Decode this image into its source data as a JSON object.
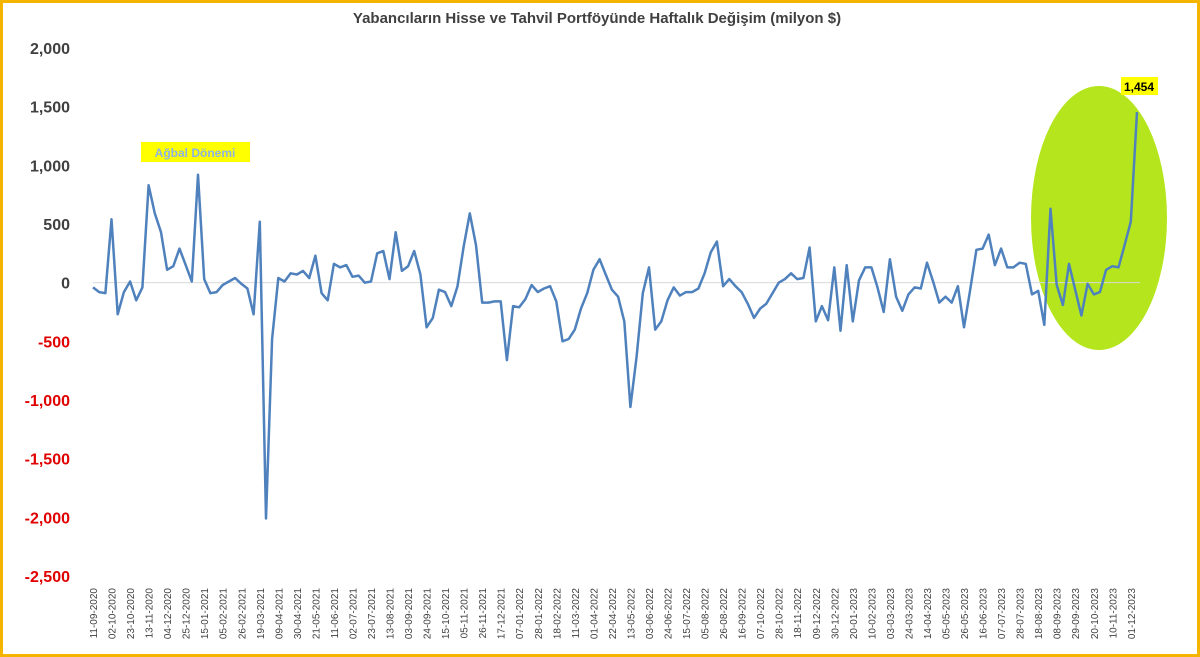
{
  "chart_data": {
    "type": "line",
    "title": "Yabancıların Hisse ve Tahvil Portföyünde Haftalık Değişim (milyon $)",
    "xlabel": "",
    "ylabel": "",
    "ylim": [
      -2500,
      2000
    ],
    "y_ticks": [
      {
        "value": 2000,
        "label": "2,000",
        "color": "#404040"
      },
      {
        "value": 1500,
        "label": "1,500",
        "color": "#404040"
      },
      {
        "value": 1000,
        "label": "1,000",
        "color": "#404040"
      },
      {
        "value": 500,
        "label": "500",
        "color": "#404040"
      },
      {
        "value": 0,
        "label": "0",
        "color": "#404040"
      },
      {
        "value": -500,
        "label": "-500",
        "color": "#e00000"
      },
      {
        "value": -1000,
        "label": "-1,000",
        "color": "#e00000"
      },
      {
        "value": -1500,
        "label": "-1,500",
        "color": "#e00000"
      },
      {
        "value": -2000,
        "label": "-2,000",
        "color": "#e00000"
      },
      {
        "value": -2500,
        "label": "-2,500",
        "color": "#e00000"
      }
    ],
    "x_tick_labels": [
      "11-09-2020",
      "02-10-2020",
      "23-10-2020",
      "13-11-2020",
      "04-12-2020",
      "25-12-2020",
      "15-01-2021",
      "05-02-2021",
      "26-02-2021",
      "19-03-2021",
      "09-04-2021",
      "30-04-2021",
      "21-05-2021",
      "11-06-2021",
      "02-07-2021",
      "23-07-2021",
      "13-08-2021",
      "03-09-2021",
      "24-09-2021",
      "15-10-2021",
      "05-11-2021",
      "26-11-2021",
      "17-12-2021",
      "07-01-2022",
      "28-01-2022",
      "18-02-2022",
      "11-03-2022",
      "01-04-2022",
      "22-04-2022",
      "13-05-2022",
      "03-06-2022",
      "24-06-2022",
      "15-07-2022",
      "05-08-2022",
      "26-08-2022",
      "16-09-2022",
      "07-10-2022",
      "28-10-2022",
      "18-11-2022",
      "09-12-2022",
      "30-12-2022",
      "20-01-2023",
      "10-02-2023",
      "03-03-2023",
      "24-03-2023",
      "14-04-2023",
      "05-05-2023",
      "26-05-2023",
      "16-06-2023",
      "07-07-2023",
      "28-07-2023",
      "18-08-2023",
      "08-09-2023",
      "29-09-2023",
      "20-10-2023",
      "10-11-2023",
      "01-12-2023"
    ],
    "legend": "none",
    "grid": false,
    "line_color": "#4f81bd",
    "series": [
      {
        "values": [
          -40,
          -80,
          -90,
          540,
          -270,
          -80,
          10,
          -150,
          -40,
          830,
          590,
          430,
          110,
          140,
          290,
          150,
          10,
          920,
          30,
          -90,
          -80,
          -20,
          10,
          40,
          -10,
          -50,
          -270,
          520,
          -2010,
          -480,
          40,
          10,
          80,
          70,
          100,
          40,
          230,
          -90,
          -150,
          160,
          130,
          150,
          50,
          60,
          0,
          10,
          250,
          270,
          30,
          430,
          100,
          140,
          270,
          70,
          -380,
          -300,
          -60,
          -80,
          -200,
          -30,
          310,
          590,
          320,
          -170,
          -170,
          -160,
          -160,
          -660,
          -200,
          -210,
          -140,
          -20,
          -80,
          -50,
          -30,
          -160,
          -500,
          -480,
          -400,
          -220,
          -90,
          110,
          200,
          70,
          -60,
          -120,
          -330,
          -1060,
          -630,
          -90,
          130,
          -400,
          -330,
          -150,
          -40,
          -110,
          -80,
          -80,
          -50,
          80,
          260,
          350,
          -30,
          30,
          -30,
          -80,
          -180,
          -300,
          -220,
          -180,
          -90,
          0,
          30,
          80,
          30,
          40,
          300,
          -330,
          -200,
          -320,
          130,
          -410,
          150,
          -330,
          20,
          130,
          130,
          -40,
          -250,
          200,
          -120,
          -240,
          -100,
          -40,
          -50,
          170,
          10,
          -170,
          -120,
          -170,
          -30,
          -380,
          -60,
          280,
          290,
          410,
          150,
          290,
          130,
          130,
          170,
          160,
          -100,
          -70,
          -360,
          630,
          -20,
          -190,
          160,
          -60,
          -280,
          -10,
          -100,
          -80,
          110,
          140,
          130,
          320,
          520,
          1454
        ]
      }
    ],
    "annotations": {
      "period_label": "Ağbal Dönemi",
      "last_value_label": "1,454"
    },
    "colors": {
      "highlight_ellipse": "#b5e61d",
      "label_background": "#ffff00",
      "period_label_text": "#8db4e2",
      "negative_tick_text": "#e00000",
      "zero_line": "#d9d9d9",
      "frame_border": "#f4b400"
    }
  }
}
